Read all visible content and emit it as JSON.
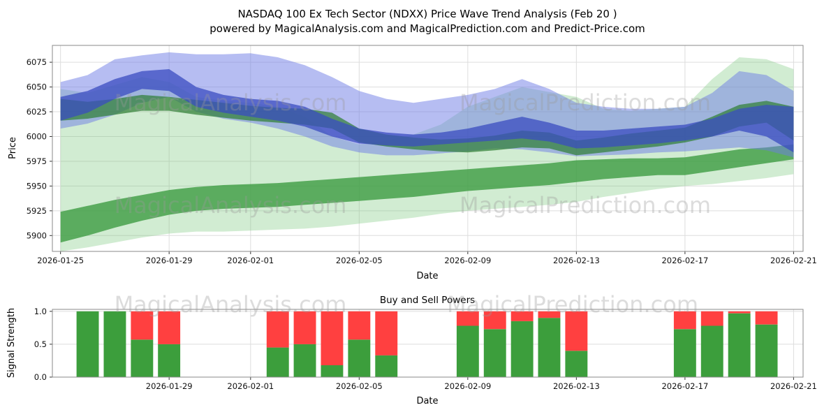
{
  "title_line1": "NASDAQ 100 Ex Tech Sector (NDXX) Price Wave Trend Analysis (Feb 20 )",
  "title_line2": "powered by MagicalAnalysis.com and MagicalPrediction.com and Predict-Price.com",
  "watermarks": {
    "left": "MagicalAnalysis.com",
    "right": "MagicalPrediction.com"
  },
  "chart_data": [
    {
      "type": "area",
      "name": "price_wave_chart",
      "title": "",
      "xlabel": "Date",
      "ylabel": "Price",
      "ylim": [
        5884,
        6092
      ],
      "xlim_days": [
        -0.3,
        27.35
      ],
      "grid": true,
      "yticks": [
        {
          "v": 5900,
          "label": "5900"
        },
        {
          "v": 5925,
          "label": "5925"
        },
        {
          "v": 5950,
          "label": "5950"
        },
        {
          "v": 5975,
          "label": "5975"
        },
        {
          "v": 6000,
          "label": "6000"
        },
        {
          "v": 6025,
          "label": "6025"
        },
        {
          "v": 6050,
          "label": "6050"
        },
        {
          "v": 6075,
          "label": "6075"
        }
      ],
      "xticks": [
        {
          "day": 0,
          "label": "2026-01-25"
        },
        {
          "day": 4,
          "label": "2026-01-29"
        },
        {
          "day": 7,
          "label": "2026-02-01"
        },
        {
          "day": 11,
          "label": "2026-02-05"
        },
        {
          "day": 15,
          "label": "2026-02-09"
        },
        {
          "day": 19,
          "label": "2026-02-13"
        },
        {
          "day": 23,
          "label": "2026-02-17"
        },
        {
          "day": 27,
          "label": "2026-02-21"
        }
      ],
      "bands": [
        {
          "name": "green-envelope-band",
          "color": "#74C476",
          "opacity": 0.33,
          "upper": [
            6048,
            6044,
            6052,
            6060,
            6055,
            6040,
            6036,
            6034,
            6030,
            6020,
            6000,
            5992,
            5996,
            6002,
            6012,
            6030,
            6040,
            6050,
            6045,
            6040,
            6028,
            6026,
            6028,
            6030,
            6058,
            6080,
            6078,
            6068
          ],
          "lower": [
            5884,
            5888,
            5893,
            5898,
            5902,
            5904,
            5904,
            5905,
            5906,
            5907,
            5909,
            5912,
            5915,
            5918,
            5922,
            5925,
            5927,
            5929,
            5931,
            5934,
            5939,
            5943,
            5947,
            5950,
            5952,
            5955,
            5958,
            5962
          ]
        },
        {
          "name": "green-support-band",
          "color": "#3D9C42",
          "opacity": 0.8,
          "upper": [
            5924,
            5930,
            5936,
            5941,
            5946,
            5949,
            5951,
            5952,
            5953,
            5955,
            5957,
            5959,
            5961,
            5963,
            5965,
            5967,
            5969,
            5971,
            5973,
            5976,
            5977,
            5978,
            5978,
            5979,
            5983,
            5987,
            5989,
            5992
          ],
          "lower": [
            5893,
            5900,
            5908,
            5915,
            5921,
            5925,
            5927,
            5928,
            5929,
            5931,
            5933,
            5935,
            5937,
            5939,
            5942,
            5945,
            5947,
            5949,
            5951,
            5954,
            5957,
            5959,
            5961,
            5961,
            5965,
            5969,
            5973,
            5977
          ]
        },
        {
          "name": "blue-outer-band",
          "color": "#6D7CE6",
          "opacity": 0.5,
          "upper": [
            6055,
            6062,
            6078,
            6082,
            6085,
            6083,
            6083,
            6084,
            6080,
            6072,
            6060,
            6046,
            6038,
            6034,
            6038,
            6042,
            6048,
            6058,
            6048,
            6034,
            6030,
            6028,
            6028,
            6030,
            6044,
            6066,
            6062,
            6046
          ],
          "lower": [
            6008,
            6013,
            6022,
            6034,
            6040,
            6025,
            6018,
            6014,
            6008,
            6000,
            5990,
            5984,
            5981,
            5981,
            5983,
            5985,
            5988,
            5987,
            5984,
            5980,
            5981,
            5982,
            5984,
            5985,
            5987,
            5989,
            5986,
            5979
          ]
        },
        {
          "name": "green-resistance-band",
          "color": "#2E7D32",
          "opacity": 0.7,
          "upper": [
            6038,
            6035,
            6038,
            6042,
            6040,
            6037,
            6034,
            6031,
            6029,
            6028,
            6024,
            6008,
            6002,
            5999,
            5997,
            5998,
            6001,
            6006,
            6004,
            5996,
            5999,
            6003,
            6006,
            6009,
            6020,
            6032,
            6036,
            6030
          ],
          "lower": [
            6016,
            6018,
            6022,
            6026,
            6026,
            6022,
            6019,
            6016,
            6014,
            6012,
            6008,
            5994,
            5990,
            5987,
            5985,
            5984,
            5986,
            5989,
            5988,
            5981,
            5984,
            5987,
            5990,
            5994,
            6000,
            6010,
            6014,
            5996
          ]
        },
        {
          "name": "blue-core-band",
          "color": "#3A4CC0",
          "opacity": 0.75,
          "upper": [
            6040,
            6046,
            6058,
            6066,
            6068,
            6050,
            6042,
            6038,
            6036,
            6030,
            6018,
            6008,
            6004,
            6002,
            6004,
            6008,
            6014,
            6020,
            6014,
            6006,
            6006,
            6008,
            6010,
            6012,
            6018,
            6028,
            6032,
            6030
          ],
          "lower": [
            6016,
            6024,
            6038,
            6048,
            6046,
            6030,
            6024,
            6020,
            6016,
            6010,
            6000,
            5993,
            5991,
            5990,
            5992,
            5994,
            5996,
            5998,
            5995,
            5988,
            5989,
            5991,
            5993,
            5996,
            6000,
            6006,
            6000,
            5984
          ]
        }
      ]
    },
    {
      "type": "bar",
      "name": "buy_sell_powers",
      "title": "Buy and Sell Powers",
      "xlabel": "Date",
      "ylabel": "Signal Strength",
      "ylim": [
        0,
        1.03
      ],
      "xlim_days": [
        -0.3,
        27.35
      ],
      "grid": true,
      "colors": {
        "buy": "#3C9E3C",
        "sell": "#FF4040"
      },
      "yticks": [
        {
          "v": 0.0,
          "label": "0.0"
        },
        {
          "v": 0.5,
          "label": "0.5"
        },
        {
          "v": 1.0,
          "label": "1.0"
        }
      ],
      "xticks": [
        {
          "day": 4,
          "label": "2026-01-29"
        },
        {
          "day": 7,
          "label": "2026-02-01"
        },
        {
          "day": 11,
          "label": "2026-02-05"
        },
        {
          "day": 15,
          "label": "2026-02-09"
        },
        {
          "day": 19,
          "label": "2026-02-13"
        },
        {
          "day": 23,
          "label": "2026-02-17"
        },
        {
          "day": 27,
          "label": "2026-02-21"
        }
      ],
      "bars": [
        {
          "day": 1,
          "date": "2026-01-26",
          "buy": 1.0,
          "sell": 0.0
        },
        {
          "day": 2,
          "date": "2026-01-27",
          "buy": 1.0,
          "sell": 0.0
        },
        {
          "day": 3,
          "date": "2026-01-28",
          "buy": 0.57,
          "sell": 0.43
        },
        {
          "day": 4,
          "date": "2026-01-29",
          "buy": 0.5,
          "sell": 0.5
        },
        {
          "day": 8,
          "date": "2026-02-02",
          "buy": 0.45,
          "sell": 0.55
        },
        {
          "day": 9,
          "date": "2026-02-03",
          "buy": 0.5,
          "sell": 0.5
        },
        {
          "day": 10,
          "date": "2026-02-04",
          "buy": 0.18,
          "sell": 0.82
        },
        {
          "day": 11,
          "date": "2026-02-05",
          "buy": 0.57,
          "sell": 0.43
        },
        {
          "day": 12,
          "date": "2026-02-06",
          "buy": 0.33,
          "sell": 0.67
        },
        {
          "day": 15,
          "date": "2026-02-09",
          "buy": 0.78,
          "sell": 0.22
        },
        {
          "day": 16,
          "date": "2026-02-10",
          "buy": 0.73,
          "sell": 0.27
        },
        {
          "day": 17,
          "date": "2026-02-11",
          "buy": 0.85,
          "sell": 0.15
        },
        {
          "day": 18,
          "date": "2026-02-12",
          "buy": 0.9,
          "sell": 0.1
        },
        {
          "day": 19,
          "date": "2026-02-13",
          "buy": 0.4,
          "sell": 0.6
        },
        {
          "day": 23,
          "date": "2026-02-17",
          "buy": 0.73,
          "sell": 0.27
        },
        {
          "day": 24,
          "date": "2026-02-18",
          "buy": 0.78,
          "sell": 0.22
        },
        {
          "day": 25,
          "date": "2026-02-19",
          "buy": 0.97,
          "sell": 0.03
        },
        {
          "day": 26,
          "date": "2026-02-20",
          "buy": 0.8,
          "sell": 0.2
        }
      ]
    }
  ]
}
